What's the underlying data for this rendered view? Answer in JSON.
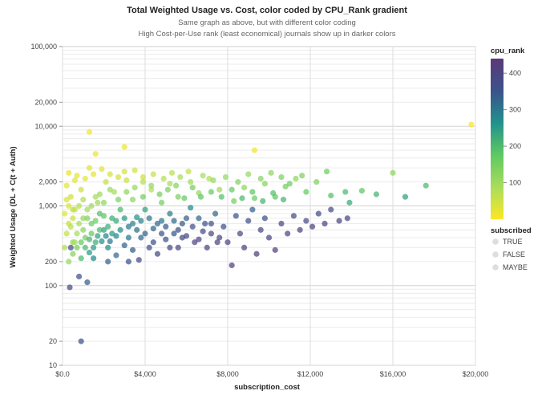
{
  "chart_data": {
    "type": "scatter",
    "title": "Total Weighted Usage vs. Cost, color coded by CPU_Rank gradient",
    "subtitle": [
      "Same graph as above, but with different color coding",
      "High Cost-per-Use rank (least economical) journals show up in darker colors"
    ],
    "xlabel": "subscription_cost",
    "ylabel": "Weighted Usage (DL + C(t + Auth)",
    "xlim": [
      0,
      20000
    ],
    "ylim": [
      10,
      100000
    ],
    "y_scale": "log",
    "x_ticks": [
      0,
      4000,
      8000,
      12000,
      16000,
      20000
    ],
    "x_tick_labels": [
      "$0.0",
      "$4,000",
      "$8,000",
      "$12,000",
      "$16,000",
      "$20,000"
    ],
    "y_ticks": [
      10,
      20,
      100,
      200,
      1000,
      2000,
      10000,
      20000,
      100000
    ],
    "y_tick_labels": [
      "10",
      "20",
      "100",
      "200",
      "1,000",
      "2,000",
      "10,000",
      "20,000",
      "100,000"
    ],
    "grid": true,
    "legend": {
      "color": {
        "title": "cpu_rank",
        "ticks": [
          100,
          200,
          300,
          400
        ],
        "tick_labels": [
          "100",
          "200",
          "300",
          "400"
        ],
        "range": [
          0,
          440
        ],
        "colors": [
          "#fde725",
          "#a8dd5c",
          "#5ec962",
          "#21918c",
          "#3b528b",
          "#5b3a78"
        ]
      },
      "shape": {
        "title": "subscribed",
        "labels": [
          "TRUE",
          "FALSE",
          "MAYBE"
        ]
      },
      "position": "right"
    },
    "points": [
      [
        400,
        300,
        380
      ],
      [
        800,
        130,
        360
      ],
      [
        350,
        95,
        380
      ],
      [
        900,
        20,
        350
      ],
      [
        1200,
        110,
        340
      ],
      [
        1300,
        8500,
        10
      ],
      [
        1600,
        4500,
        20
      ],
      [
        3000,
        5500,
        15
      ],
      [
        9300,
        5000,
        12
      ],
      [
        19800,
        10500,
        5
      ],
      [
        16000,
        2600,
        120
      ],
      [
        17600,
        1800,
        200
      ],
      [
        16600,
        1300,
        240
      ],
      [
        15200,
        1400,
        210
      ],
      [
        14500,
        1550,
        180
      ],
      [
        13700,
        1500,
        200
      ],
      [
        12800,
        2700,
        160
      ],
      [
        13900,
        1100,
        230
      ],
      [
        13000,
        1350,
        190
      ],
      [
        12300,
        2000,
        140
      ],
      [
        11800,
        1500,
        170
      ],
      [
        11300,
        2200,
        120
      ],
      [
        10800,
        1750,
        150
      ],
      [
        10300,
        1300,
        180
      ],
      [
        9800,
        1900,
        130
      ],
      [
        9300,
        1250,
        160
      ],
      [
        8800,
        1700,
        120
      ],
      [
        8300,
        1150,
        150
      ],
      [
        7600,
        1600,
        100
      ],
      [
        7100,
        2200,
        80
      ],
      [
        6600,
        1450,
        110
      ],
      [
        6100,
        2700,
        60
      ],
      [
        5600,
        1300,
        140
      ],
      [
        5200,
        1900,
        90
      ],
      [
        4800,
        1100,
        150
      ],
      [
        4300,
        1600,
        80
      ],
      [
        3900,
        2300,
        50
      ],
      [
        3400,
        1200,
        120
      ],
      [
        3000,
        2700,
        40
      ],
      [
        2500,
        1500,
        90
      ],
      [
        2100,
        2000,
        60
      ],
      [
        1700,
        1100,
        100
      ],
      [
        1300,
        3000,
        30
      ],
      [
        900,
        1600,
        50
      ],
      [
        600,
        2100,
        30
      ],
      [
        300,
        600,
        60
      ],
      [
        200,
        1800,
        25
      ],
      [
        500,
        900,
        70
      ],
      [
        700,
        450,
        90
      ],
      [
        1000,
        700,
        110
      ],
      [
        1100,
        400,
        150
      ],
      [
        1400,
        600,
        160
      ],
      [
        1600,
        350,
        220
      ],
      [
        1800,
        800,
        190
      ],
      [
        2000,
        500,
        240
      ],
      [
        2200,
        300,
        270
      ],
      [
        2400,
        700,
        220
      ],
      [
        2600,
        420,
        280
      ],
      [
        2800,
        900,
        200
      ],
      [
        3000,
        320,
        330
      ],
      [
        3200,
        550,
        300
      ],
      [
        3400,
        280,
        340
      ],
      [
        3600,
        720,
        260
      ],
      [
        3800,
        400,
        320
      ],
      [
        4000,
        900,
        240
      ],
      [
        4200,
        300,
        360
      ],
      [
        4400,
        520,
        330
      ],
      [
        4600,
        250,
        380
      ],
      [
        4800,
        650,
        300
      ],
      [
        5000,
        380,
        360
      ],
      [
        5200,
        800,
        290
      ],
      [
        5400,
        450,
        350
      ],
      [
        5600,
        300,
        390
      ],
      [
        5800,
        600,
        340
      ],
      [
        6000,
        420,
        380
      ],
      [
        6200,
        950,
        280
      ],
      [
        6400,
        350,
        400
      ],
      [
        6600,
        700,
        320
      ],
      [
        6800,
        480,
        370
      ],
      [
        7000,
        300,
        410
      ],
      [
        7200,
        600,
        350
      ],
      [
        7400,
        800,
        320
      ],
      [
        7600,
        400,
        390
      ],
      [
        7800,
        550,
        370
      ],
      [
        8000,
        350,
        410
      ],
      [
        8200,
        180,
        420
      ],
      [
        8400,
        750,
        350
      ],
      [
        8600,
        450,
        390
      ],
      [
        8800,
        300,
        410
      ],
      [
        9000,
        650,
        360
      ],
      [
        9200,
        900,
        330
      ],
      [
        9400,
        250,
        420
      ],
      [
        9600,
        500,
        380
      ],
      [
        9800,
        700,
        360
      ],
      [
        10000,
        400,
        400
      ],
      [
        10300,
        280,
        420
      ],
      [
        10600,
        600,
        380
      ],
      [
        10900,
        450,
        400
      ],
      [
        11200,
        750,
        370
      ],
      [
        11500,
        500,
        400
      ],
      [
        11800,
        650,
        390
      ],
      [
        12100,
        550,
        400
      ],
      [
        12400,
        800,
        380
      ],
      [
        12700,
        600,
        400
      ],
      [
        13000,
        900,
        370
      ],
      [
        13400,
        650,
        400
      ],
      [
        13800,
        700,
        390
      ],
      [
        900,
        220,
        200
      ],
      [
        1300,
        260,
        250
      ],
      [
        2200,
        200,
        330
      ],
      [
        2600,
        240,
        320
      ],
      [
        3200,
        200,
        360
      ],
      [
        3700,
        210,
        380
      ],
      [
        500,
        350,
        120
      ],
      [
        1500,
        220,
        280
      ],
      [
        200,
        1200,
        40
      ],
      [
        400,
        1300,
        50
      ],
      [
        600,
        900,
        60
      ],
      [
        800,
        1000,
        70
      ],
      [
        1000,
        1200,
        80
      ],
      [
        1200,
        900,
        90
      ],
      [
        1400,
        1000,
        100
      ],
      [
        1600,
        1300,
        90
      ],
      [
        1800,
        1400,
        100
      ],
      [
        2000,
        1100,
        120
      ],
      [
        2300,
        1600,
        100
      ],
      [
        2700,
        1200,
        140
      ],
      [
        3100,
        1500,
        120
      ],
      [
        3500,
        1700,
        110
      ],
      [
        3900,
        1300,
        150
      ],
      [
        4300,
        1800,
        110
      ],
      [
        4700,
        1400,
        150
      ],
      [
        5100,
        1600,
        140
      ],
      [
        5500,
        1800,
        130
      ],
      [
        5900,
        1250,
        170
      ],
      [
        6300,
        1700,
        150
      ],
      [
        6700,
        1300,
        180
      ],
      [
        7200,
        1500,
        170
      ],
      [
        7700,
        1300,
        190
      ],
      [
        8200,
        1600,
        170
      ],
      [
        8700,
        1250,
        200
      ],
      [
        9200,
        1500,
        180
      ],
      [
        9700,
        1150,
        210
      ],
      [
        10200,
        1450,
        190
      ],
      [
        10700,
        1200,
        210
      ],
      [
        300,
        2600,
        20
      ],
      [
        700,
        2400,
        25
      ],
      [
        1100,
        2200,
        30
      ],
      [
        1500,
        2500,
        30
      ],
      [
        1900,
        2900,
        30
      ],
      [
        2300,
        2500,
        40
      ],
      [
        2700,
        2300,
        45
      ],
      [
        3100,
        2100,
        55
      ],
      [
        3500,
        2800,
        45
      ],
      [
        3900,
        2000,
        70
      ],
      [
        4400,
        2500,
        60
      ],
      [
        4900,
        2200,
        75
      ],
      [
        5300,
        2600,
        70
      ],
      [
        5700,
        2300,
        85
      ],
      [
        6200,
        2000,
        95
      ],
      [
        6800,
        2400,
        90
      ],
      [
        7300,
        2100,
        110
      ],
      [
        7900,
        2300,
        110
      ],
      [
        8500,
        2000,
        130
      ],
      [
        9000,
        2500,
        110
      ],
      [
        9600,
        2200,
        130
      ],
      [
        10100,
        2600,
        120
      ],
      [
        10600,
        2300,
        140
      ],
      [
        11000,
        1900,
        160
      ],
      [
        11600,
        2400,
        140
      ],
      [
        200,
        450,
        60
      ],
      [
        400,
        550,
        70
      ],
      [
        600,
        350,
        90
      ],
      [
        800,
        600,
        90
      ],
      [
        1000,
        500,
        120
      ],
      [
        1200,
        700,
        130
      ],
      [
        1400,
        450,
        170
      ],
      [
        1600,
        650,
        160
      ],
      [
        1800,
        500,
        200
      ],
      [
        2000,
        750,
        180
      ],
      [
        2200,
        550,
        220
      ],
      [
        2400,
        450,
        250
      ],
      [
        2600,
        650,
        230
      ],
      [
        2800,
        500,
        270
      ],
      [
        3000,
        700,
        250
      ],
      [
        3200,
        400,
        300
      ],
      [
        3400,
        600,
        280
      ],
      [
        3600,
        500,
        310
      ],
      [
        3800,
        650,
        290
      ],
      [
        4000,
        450,
        330
      ],
      [
        4200,
        700,
        300
      ],
      [
        4400,
        350,
        360
      ],
      [
        4600,
        600,
        320
      ],
      [
        4800,
        450,
        350
      ],
      [
        5000,
        550,
        340
      ],
      [
        5200,
        300,
        390
      ],
      [
        5400,
        650,
        320
      ],
      [
        5600,
        500,
        360
      ],
      [
        5800,
        400,
        380
      ],
      [
        6000,
        700,
        330
      ],
      [
        6300,
        550,
        360
      ],
      [
        6600,
        380,
        400
      ],
      [
        6900,
        600,
        360
      ],
      [
        7200,
        450,
        390
      ],
      [
        7500,
        350,
        410
      ],
      [
        100,
        800,
        30
      ],
      [
        300,
        1000,
        35
      ],
      [
        500,
        700,
        50
      ],
      [
        100,
        300,
        80
      ],
      [
        300,
        200,
        110
      ],
      [
        500,
        250,
        130
      ],
      [
        700,
        300,
        150
      ],
      [
        900,
        350,
        170
      ],
      [
        1100,
        300,
        200
      ],
      [
        1300,
        380,
        210
      ],
      [
        1500,
        300,
        250
      ],
      [
        1700,
        420,
        240
      ],
      [
        1900,
        360,
        270
      ],
      [
        2100,
        420,
        280
      ],
      [
        2300,
        360,
        300
      ]
    ]
  }
}
